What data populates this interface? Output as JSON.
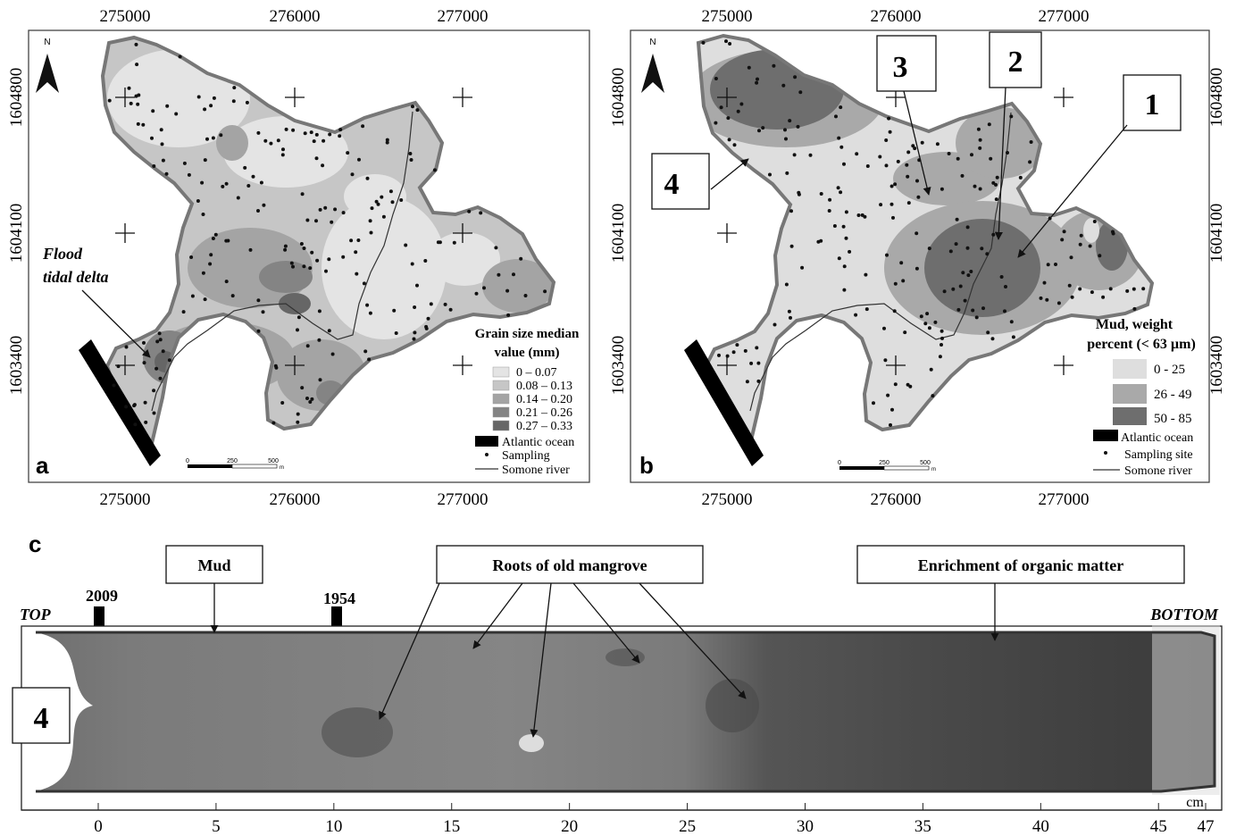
{
  "panel_a": {
    "letter": "a",
    "north": "N",
    "top_ticks": [
      "275000",
      "276000",
      "277000"
    ],
    "bottom_ticks": [
      "275000",
      "276000",
      "277000"
    ],
    "left_ticks": [
      "1604800",
      "1604100",
      "1603400"
    ],
    "annotation_line1": "Flood",
    "annotation_line2": "tidal delta",
    "legend": {
      "title_line1": "Grain size median",
      "title_line2": "value (mm)",
      "classes": [
        {
          "label": "0 – 0.07",
          "color": "#e4e4e4"
        },
        {
          "label": "0.08 – 0.13",
          "color": "#c6c6c6"
        },
        {
          "label": "0.14 – 0.20",
          "color": "#a4a4a4"
        },
        {
          "label": "0.21 – 0.26",
          "color": "#848484"
        },
        {
          "label": "0.27 – 0.33",
          "color": "#666666"
        }
      ],
      "ocean": "Atlantic ocean",
      "sampling": "Sampling",
      "river": "Somone river"
    },
    "scale_labels": [
      "0",
      "250",
      "500"
    ],
    "scale_unit": "m"
  },
  "panel_b": {
    "letter": "b",
    "north": "N",
    "top_ticks": [
      "275000",
      "276000",
      "277000"
    ],
    "bottom_ticks": [
      "275000",
      "276000",
      "277000"
    ],
    "right_ticks": [
      "1604800",
      "1604100",
      "1603400"
    ],
    "callouts": [
      "1",
      "2",
      "3",
      "4"
    ],
    "legend": {
      "title_line1": "Mud, weight",
      "title_line2": "percent (< 63 µm)",
      "classes": [
        {
          "label": "0 - 25",
          "color": "#dedede"
        },
        {
          "label": "26 - 49",
          "color": "#a9a9a9"
        },
        {
          "label": "50 - 85",
          "color": "#6e6e6e"
        }
      ],
      "ocean": "Atlantic ocean",
      "sampling": "Sampling site",
      "river": "Somone river"
    },
    "scale_labels": [
      "0",
      "250",
      "500"
    ],
    "scale_unit": "m"
  },
  "panel_c": {
    "letter": "c",
    "callouts": {
      "mud": "Mud",
      "roots": "Roots of old mangrove",
      "organic": "Enrichment of organic matter"
    },
    "years": [
      "2009",
      "1954"
    ],
    "top_label": "TOP",
    "bottom_label": "BOTTOM",
    "core_id": "4",
    "axis_ticks": [
      "0",
      "5",
      "10",
      "15",
      "20",
      "25",
      "30",
      "35",
      "40",
      "45",
      "47"
    ],
    "axis_unit": "cm"
  },
  "colors": {
    "frame": "#555555",
    "ocean": "#000000",
    "lagoon_light": "#e4e4e4"
  }
}
